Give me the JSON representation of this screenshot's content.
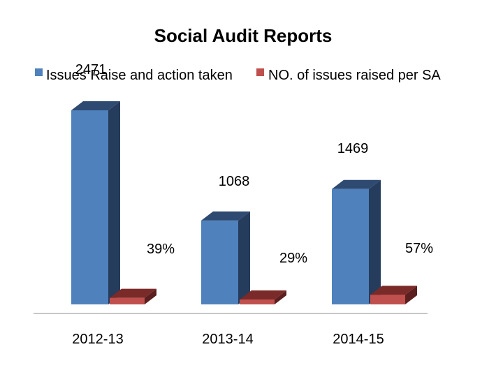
{
  "chart_data": {
    "type": "bar",
    "title": "Social Audit Reports",
    "categories": [
      "2012-13",
      "2013-14",
      "2014-15"
    ],
    "series": [
      {
        "name": "Issues Raise and action taken",
        "values": [
          2471,
          1068,
          1469
        ],
        "labels": [
          "2471",
          "1068",
          "1469"
        ],
        "color": "#4f81bd",
        "top_color": "#2e4a70",
        "side_color": "#253c5c"
      },
      {
        "name": "NO. of issues raised per SA",
        "values": [
          39,
          29,
          57
        ],
        "labels": [
          "39%",
          "29%",
          "57%"
        ],
        "color": "#c0504d",
        "top_color": "#7a2a28",
        "side_color": "#5a1f1e"
      }
    ],
    "ylim": [
      0,
      2600
    ],
    "grid": false,
    "legend_position": "top",
    "style": "3d-column"
  }
}
